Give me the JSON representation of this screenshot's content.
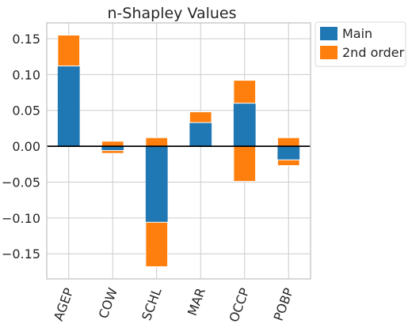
{
  "chart_data": {
    "type": "bar",
    "stacked": true,
    "title": "n-Shapley Values",
    "xlabel": "",
    "ylabel": "",
    "categories": [
      "AGEP",
      "COW",
      "SCHL",
      "MAR",
      "OCCP",
      "POBP"
    ],
    "series": [
      {
        "name": "Main",
        "color": "#1f77b4",
        "values": [
          0.112,
          -0.006,
          -0.106,
          0.033,
          0.06,
          -0.019
        ]
      },
      {
        "name": "2nd order",
        "color": "#ff7f0e",
        "positive": [
          0.043,
          0.007,
          0.012,
          0.015,
          0.032,
          0.012
        ],
        "negative": [
          0.0,
          -0.004,
          -0.062,
          0.0,
          -0.049,
          -0.008
        ]
      }
    ],
    "ylim": [
      -0.185,
      0.172
    ],
    "yticks": [
      0.15,
      0.1,
      0.05,
      0.0,
      -0.05,
      -0.1,
      -0.15
    ],
    "ytick_labels": [
      "0.15",
      "0.10",
      "0.05",
      "0.00",
      "−0.05",
      "−0.10",
      "−0.15"
    ],
    "grid": true,
    "legend_position": "outside-top-right",
    "tick_label_rotation": -70
  }
}
